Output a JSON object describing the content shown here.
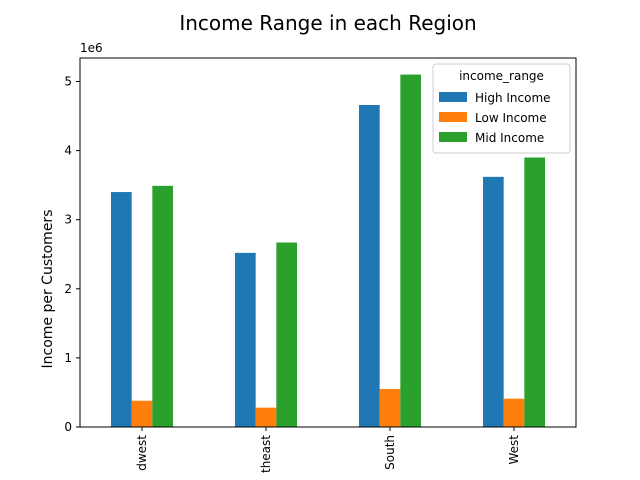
{
  "chart_data": {
    "type": "bar",
    "title": "Income Range in each Region",
    "xlabel": "",
    "ylabel": "Income per Customers",
    "y_offset_label": "1e6",
    "y_scale": 1000000,
    "ylim": [
      0,
      5340000
    ],
    "y_ticks": [
      0,
      1000000,
      2000000,
      3000000,
      4000000,
      5000000
    ],
    "y_tick_labels": [
      "0",
      "1",
      "2",
      "3",
      "4",
      "5"
    ],
    "grid": false,
    "categories": [
      "Midwest",
      "Northeast",
      "South",
      "West"
    ],
    "category_labels_visible": [
      "dwest",
      "theast",
      "South",
      "West"
    ],
    "legend": {
      "title": "income_range",
      "placement": "top-right"
    },
    "series": [
      {
        "name": "High Income",
        "color": "#1f77b4",
        "values": [
          3400000,
          2520000,
          4660000,
          3620000
        ]
      },
      {
        "name": "Low Income",
        "color": "#ff7f0e",
        "values": [
          380000,
          280000,
          550000,
          410000
        ]
      },
      {
        "name": "Mid Income",
        "color": "#2ca02c",
        "values": [
          3490000,
          2670000,
          5100000,
          3900000
        ]
      }
    ]
  }
}
